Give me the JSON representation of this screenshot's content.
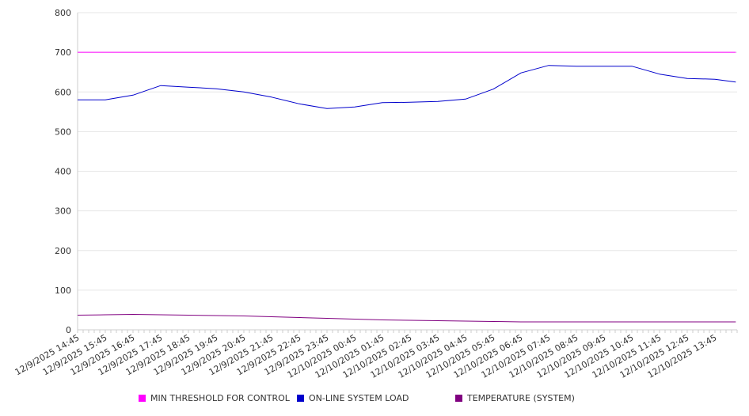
{
  "chart_data": {
    "type": "line",
    "title": "",
    "xlabel": "",
    "ylabel": "",
    "ylim": [
      0,
      800
    ],
    "y_ticks": [
      0,
      100,
      200,
      300,
      400,
      500,
      600,
      700,
      800
    ],
    "grid": true,
    "legend_position": "bottom",
    "x_tick_labels": [
      "12/9/2025 14:45",
      "12/9/2025 15:45",
      "12/9/2025 16:45",
      "12/9/2025 17:45",
      "12/9/2025 18:45",
      "12/9/2025 19:45",
      "12/9/2025 20:45",
      "12/9/2025 21:45",
      "12/9/2025 22:45",
      "12/9/2025 23:45",
      "12/10/2025 00:45",
      "12/10/2025 01:45",
      "12/10/2025 02:45",
      "12/10/2025 03:45",
      "12/10/2025 04:45",
      "12/10/2025 05:45",
      "12/10/2025 06:45",
      "12/10/2025 07:45",
      "12/10/2025 08:45",
      "12/10/2025 09:45",
      "12/10/2025 10:45",
      "12/10/2025 11:45",
      "12/10/2025 12:45",
      "12/10/2025 13:45"
    ],
    "series": [
      {
        "name": "MIN THRESHOLD FOR CONTROL",
        "color": "#ff00ff",
        "x": [
          "12/9/2025 14:45",
          "12/10/2025 14:30"
        ],
        "values": [
          700,
          700
        ]
      },
      {
        "name": "ON-LINE SYSTEM LOAD",
        "color": "#0000cc",
        "x": [
          "12/9/2025 14:45",
          "12/9/2025 15:45",
          "12/9/2025 16:45",
          "12/9/2025 17:45",
          "12/9/2025 18:45",
          "12/9/2025 19:45",
          "12/9/2025 20:45",
          "12/9/2025 21:45",
          "12/9/2025 22:45",
          "12/9/2025 23:45",
          "12/10/2025 00:45",
          "12/10/2025 01:45",
          "12/10/2025 02:45",
          "12/10/2025 03:45",
          "12/10/2025 04:45",
          "12/10/2025 05:45",
          "12/10/2025 06:45",
          "12/10/2025 07:45",
          "12/10/2025 08:45",
          "12/10/2025 09:45",
          "12/10/2025 10:45",
          "12/10/2025 11:45",
          "12/10/2025 12:45",
          "12/10/2025 13:45",
          "12/10/2025 14:30"
        ],
        "values": [
          580,
          580,
          592,
          616,
          612,
          608,
          600,
          587,
          570,
          558,
          562,
          573,
          574,
          576,
          582,
          607,
          648,
          667,
          665,
          665,
          665,
          645,
          634,
          632,
          625
        ]
      },
      {
        "name": "TEMPERATURE (SYSTEM)",
        "color": "#800080",
        "x": [
          "12/9/2025 14:45",
          "12/9/2025 15:45",
          "12/9/2025 16:45",
          "12/9/2025 17:45",
          "12/9/2025 18:45",
          "12/9/2025 19:45",
          "12/9/2025 20:45",
          "12/9/2025 21:45",
          "12/9/2025 22:45",
          "12/9/2025 23:45",
          "12/10/2025 00:45",
          "12/10/2025 01:45",
          "12/10/2025 02:45",
          "12/10/2025 03:45",
          "12/10/2025 04:45",
          "12/10/2025 05:45",
          "12/10/2025 06:45",
          "12/10/2025 07:45",
          "12/10/2025 08:45",
          "12/10/2025 09:45",
          "12/10/2025 10:45",
          "12/10/2025 11:45",
          "12/10/2025 12:45",
          "12/10/2025 13:45",
          "12/10/2025 14:30"
        ],
        "values": [
          37,
          38,
          39,
          38,
          37,
          36,
          35,
          33,
          31,
          29,
          27,
          25,
          24,
          23,
          22,
          21,
          20,
          20,
          20,
          20,
          20,
          20,
          20,
          20,
          20
        ]
      }
    ]
  }
}
